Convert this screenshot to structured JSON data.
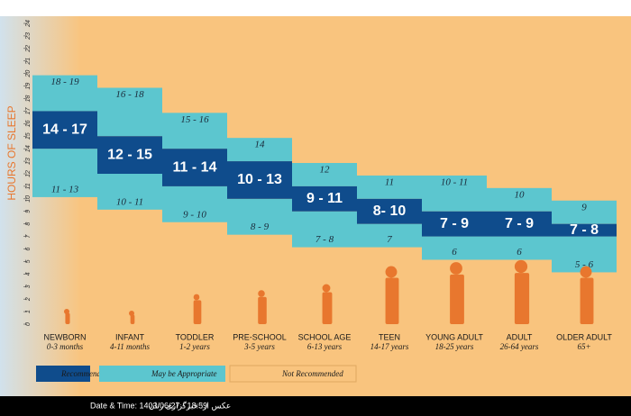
{
  "chart_data": {
    "type": "range",
    "axis_title": "HOURS OF SLEEP",
    "categories": [
      "NEWBORN",
      "INFANT",
      "TODDLER",
      "PRE-SCHOOL",
      "SCHOOL AGE",
      "TEEN",
      "YOUNG ADULT",
      "ADULT",
      "OLDER ADULT"
    ],
    "category_subtitles": [
      "0-3 months",
      "4-11 months",
      "1-2 years",
      "3-5 years",
      "6-13 years",
      "14-17 years",
      "18-25 years",
      "26-64 years",
      "65+"
    ],
    "ylim": [
      0,
      24
    ],
    "yticks": [
      0,
      1,
      2,
      3,
      4,
      5,
      6,
      7,
      8,
      9,
      10,
      11,
      12,
      13,
      14,
      15,
      16,
      17,
      18,
      19,
      20,
      21,
      22,
      23,
      24
    ],
    "series": [
      {
        "name": "Recommended",
        "color": "#0f4c8c",
        "low": [
          14,
          12,
          11,
          10,
          9,
          8,
          7,
          7,
          7
        ],
        "high": [
          17,
          15,
          14,
          13,
          11,
          10,
          9,
          9,
          8
        ],
        "value_labels": [
          "14 - 17",
          "12 - 15",
          "11 - 14",
          "10 - 13",
          "9 - 11",
          "8- 10",
          "7 - 9",
          "7 - 9",
          "7 - 8"
        ]
      },
      {
        "name": "May be Appropriate",
        "color": "#5cc6cf",
        "upper": {
          "low": [
            18,
            16,
            15,
            14,
            12,
            11,
            10,
            10,
            9
          ],
          "high": [
            19,
            18,
            16,
            14,
            12,
            11,
            11,
            10,
            9
          ],
          "value_labels": [
            "18 - 19",
            "16 - 18",
            "15 - 16",
            "14",
            "12",
            "11",
            "10 - 11",
            "10",
            "9"
          ]
        },
        "lower": {
          "low": [
            11,
            10,
            9,
            8,
            7,
            7,
            6,
            6,
            5
          ],
          "high": [
            13,
            11,
            10,
            9,
            8,
            7,
            6,
            6,
            6
          ],
          "value_labels": [
            "11 - 13",
            "10 - 11",
            "9 - 10",
            "8 - 9",
            "7 - 8",
            "7",
            "6",
            "6",
            "5 - 6"
          ]
        }
      },
      {
        "name": "Not Recommended",
        "color": "#f9c47e"
      }
    ]
  },
  "footer": {
    "source": "عکس از: خبرگزاری زنان",
    "datetime": "Date & Time: 1403/06/27 - 18:59"
  }
}
